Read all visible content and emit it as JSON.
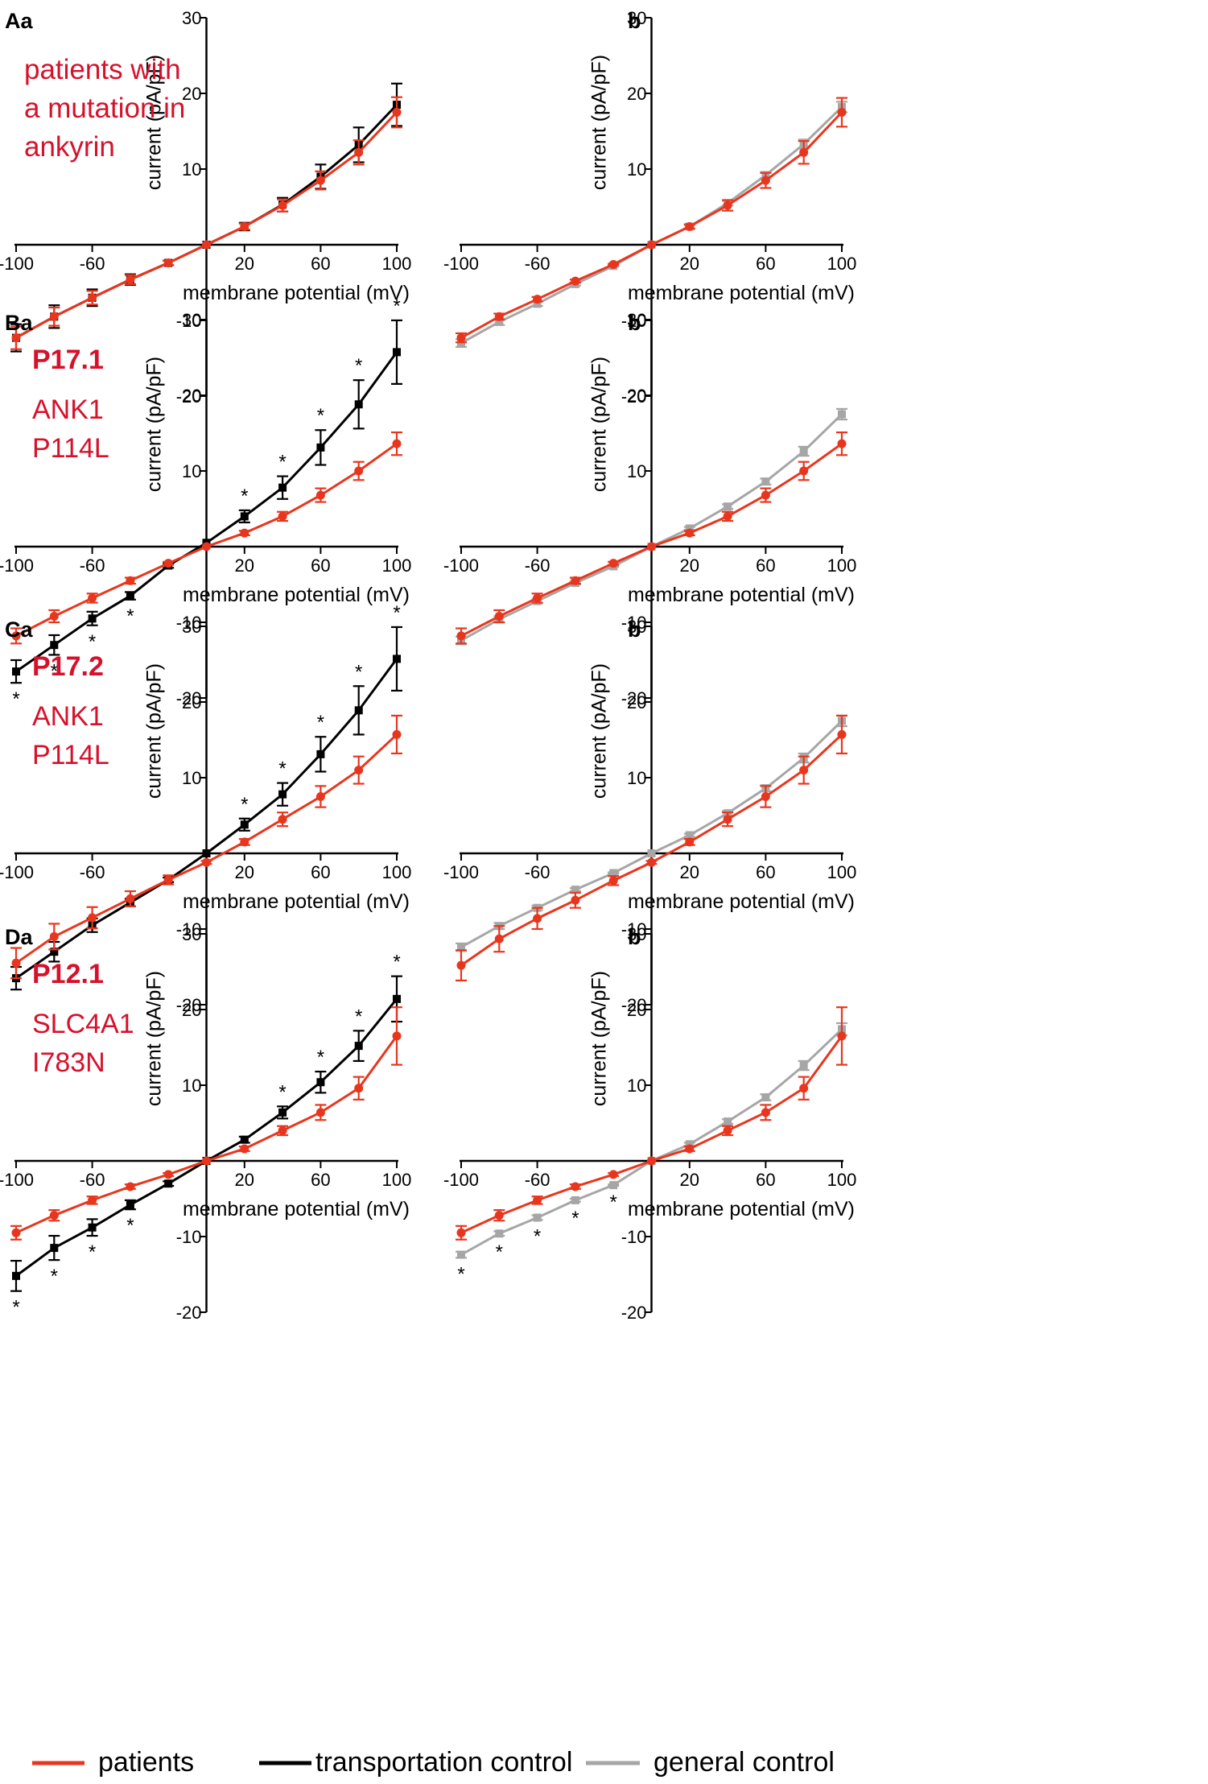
{
  "colors": {
    "patients": "#e8361e",
    "transport": "#000000",
    "general": "#a6a6a6",
    "annotation_red": "#d6112b"
  },
  "legend": [
    {
      "key": "patients",
      "label": "patients"
    },
    {
      "key": "transport",
      "label": "transportation control"
    },
    {
      "key": "general",
      "label": "general control"
    }
  ],
  "chart_data": [
    {
      "panel": "Aa",
      "type": "line",
      "title": "Aa",
      "annotation": [
        "patients with",
        "a mutation in",
        "ankyrin"
      ],
      "annotation_bold_first": false,
      "xlabel": "membrane potential (mV)",
      "ylabel": "current (pA/pF)",
      "xlim": [
        -100,
        100
      ],
      "ylim": [
        -20,
        30
      ],
      "x_ticks": [
        -100,
        -60,
        20,
        60,
        100
      ],
      "y_ticks": [
        30,
        20,
        10,
        -10,
        -20
      ],
      "x": [
        -100,
        -80,
        -60,
        -40,
        -20,
        0,
        20,
        40,
        60,
        80,
        100
      ],
      "series": [
        {
          "name": "transportation control",
          "key": "transport",
          "marker": "square",
          "values": [
            -12.3,
            -9.5,
            -7.0,
            -4.6,
            -2.4,
            0,
            2.4,
            5.3,
            9.0,
            13.2,
            18.5
          ],
          "errors": [
            1.8,
            1.5,
            1.1,
            0.7,
            0.3,
            0,
            0.5,
            0.9,
            1.6,
            2.3,
            2.8
          ],
          "significant": []
        },
        {
          "name": "patients",
          "key": "patients",
          "marker": "circle",
          "values": [
            -12.3,
            -9.5,
            -7.0,
            -4.6,
            -2.4,
            0,
            2.4,
            5.2,
            8.5,
            12.2,
            17.5
          ],
          "errors": [
            1.5,
            1.2,
            0.9,
            0.6,
            0.3,
            0,
            0.4,
            0.8,
            1.2,
            1.6,
            2.0
          ],
          "significant": []
        }
      ]
    },
    {
      "panel": "Ab",
      "type": "line",
      "title": "b",
      "annotation": [],
      "xlabel": "membrane potential (mV)",
      "ylabel": "current (pA/pF)",
      "xlim": [
        -100,
        100
      ],
      "ylim": [
        -20,
        30
      ],
      "x_ticks": [
        -100,
        -60,
        20,
        60,
        100
      ],
      "y_ticks": [
        30,
        20,
        10,
        -10,
        -20
      ],
      "x": [
        -100,
        -80,
        -60,
        -40,
        -20,
        0,
        20,
        40,
        60,
        80,
        100
      ],
      "series": [
        {
          "name": "general control",
          "key": "general",
          "marker": "square",
          "values": [
            -13.0,
            -10.2,
            -7.8,
            -5.2,
            -2.8,
            0,
            2.4,
            5.5,
            9.2,
            13.3,
            18.2
          ],
          "errors": [
            0.5,
            0.4,
            0.3,
            0.2,
            0.1,
            0,
            0.2,
            0.3,
            0.4,
            0.6,
            0.7
          ],
          "significant": []
        },
        {
          "name": "patients",
          "key": "patients",
          "marker": "circle",
          "values": [
            -12.3,
            -9.5,
            -7.2,
            -4.8,
            -2.6,
            0,
            2.4,
            5.2,
            8.5,
            12.2,
            17.5
          ],
          "errors": [
            0.6,
            0.4,
            0.3,
            0.2,
            0.1,
            0,
            0.3,
            0.7,
            1.0,
            1.5,
            1.9
          ],
          "significant": []
        }
      ]
    },
    {
      "panel": "Ba",
      "type": "line",
      "title": "Ba",
      "annotation": [
        "P17.1",
        "ANK1",
        "P114L"
      ],
      "annotation_bold_first": true,
      "xlabel": "membrane potential (mV)",
      "ylabel": "current (pA/pF)",
      "xlim": [
        -100,
        100
      ],
      "ylim": [
        -20,
        30
      ],
      "x_ticks": [
        -100,
        -60,
        20,
        60,
        100
      ],
      "y_ticks": [
        30,
        20,
        10,
        -10,
        -20
      ],
      "x": [
        -100,
        -80,
        -60,
        -40,
        -20,
        0,
        20,
        40,
        60,
        80,
        100
      ],
      "series": [
        {
          "name": "transportation control",
          "key": "transport",
          "marker": "square",
          "values": [
            -16.5,
            -13.0,
            -9.5,
            -6.5,
            -2.5,
            0.5,
            4.0,
            7.8,
            13.1,
            18.8,
            25.7
          ],
          "errors": [
            1.5,
            1.3,
            0.9,
            0.5,
            0.3,
            0,
            0.8,
            1.5,
            2.3,
            3.2,
            4.2
          ],
          "significant": [
            -100,
            -80,
            -60,
            -40,
            20,
            40,
            60,
            80,
            100
          ],
          "star_label": "*"
        },
        {
          "name": "patients",
          "key": "patients",
          "marker": "circle",
          "values": [
            -11.8,
            -9.2,
            -6.8,
            -4.5,
            -2.2,
            0,
            1.8,
            4.0,
            6.8,
            10.0,
            13.6
          ],
          "errors": [
            1.0,
            0.8,
            0.6,
            0.4,
            0.2,
            0,
            0.3,
            0.6,
            0.9,
            1.2,
            1.5
          ],
          "significant": []
        }
      ]
    },
    {
      "panel": "Bb",
      "type": "line",
      "title": "b",
      "annotation": [],
      "xlabel": "membrane potential (mV)",
      "ylabel": "current (pA/pF)",
      "xlim": [
        -100,
        100
      ],
      "ylim": [
        -20,
        30
      ],
      "x_ticks": [
        -100,
        -60,
        20,
        60,
        100
      ],
      "y_ticks": [
        30,
        20,
        10,
        -10,
        -20
      ],
      "x": [
        -100,
        -80,
        -60,
        -40,
        -20,
        0,
        20,
        40,
        60,
        80,
        100
      ],
      "series": [
        {
          "name": "general control",
          "key": "general",
          "marker": "square",
          "values": [
            -12.4,
            -9.6,
            -7.2,
            -4.8,
            -2.6,
            0,
            2.4,
            5.3,
            8.6,
            12.6,
            17.5
          ],
          "errors": [
            0.5,
            0.4,
            0.3,
            0.2,
            0.1,
            0,
            0.2,
            0.3,
            0.4,
            0.6,
            0.7
          ],
          "significant": []
        },
        {
          "name": "patients",
          "key": "patients",
          "marker": "circle",
          "values": [
            -11.8,
            -9.2,
            -6.8,
            -4.5,
            -2.2,
            0,
            1.8,
            4.0,
            6.8,
            10.0,
            13.6
          ],
          "errors": [
            1.0,
            0.8,
            0.6,
            0.4,
            0.2,
            0,
            0.3,
            0.6,
            0.9,
            1.2,
            1.5
          ],
          "significant": []
        }
      ]
    },
    {
      "panel": "Ca",
      "type": "line",
      "title": "Ca",
      "annotation": [
        "P17.2",
        "ANK1",
        "P114L"
      ],
      "annotation_bold_first": true,
      "xlabel": "membrane potential (mV)",
      "ylabel": "current (pA/pF)",
      "xlim": [
        -100,
        100
      ],
      "ylim": [
        -20,
        30
      ],
      "x_ticks": [
        -100,
        -60,
        20,
        60,
        100
      ],
      "y_ticks": [
        30,
        20,
        10,
        -10,
        -20
      ],
      "x": [
        -100,
        -80,
        -60,
        -40,
        -20,
        0,
        20,
        40,
        60,
        80,
        100
      ],
      "series": [
        {
          "name": "transportation control",
          "key": "transport",
          "marker": "square",
          "values": [
            -16.5,
            -13.0,
            -9.5,
            -6.5,
            -3.5,
            0,
            3.8,
            7.8,
            13.1,
            18.9,
            25.7
          ],
          "errors": [
            1.5,
            1.3,
            0.9,
            0.5,
            0.3,
            0,
            0.8,
            1.5,
            2.3,
            3.2,
            4.2
          ],
          "significant": [
            20,
            40,
            60,
            80,
            100
          ],
          "star_label": "*"
        },
        {
          "name": "patients",
          "key": "patients",
          "marker": "circle",
          "values": [
            -14.5,
            -11.0,
            -8.5,
            -6.0,
            -3.5,
            -1.2,
            1.5,
            4.5,
            7.5,
            11.0,
            15.7
          ],
          "errors": [
            2.0,
            1.7,
            1.4,
            1.0,
            0.6,
            0.2,
            0.4,
            0.9,
            1.4,
            1.8,
            2.5
          ],
          "significant": []
        }
      ]
    },
    {
      "panel": "Cb",
      "type": "line",
      "title": "b",
      "annotation": [],
      "xlabel": "membrane potential (mV)",
      "ylabel": "current (pA/pF)",
      "xlim": [
        -100,
        100
      ],
      "ylim": [
        -20,
        30
      ],
      "x_ticks": [
        -100,
        -60,
        20,
        60,
        100
      ],
      "y_ticks": [
        30,
        20,
        10,
        -10,
        -20
      ],
      "x": [
        -100,
        -80,
        -60,
        -40,
        -20,
        0,
        20,
        40,
        60,
        80,
        100
      ],
      "series": [
        {
          "name": "general control",
          "key": "general",
          "marker": "square",
          "values": [
            -12.4,
            -9.6,
            -7.2,
            -4.8,
            -2.6,
            0,
            2.4,
            5.3,
            8.6,
            12.6,
            17.5
          ],
          "errors": [
            0.5,
            0.4,
            0.3,
            0.2,
            0.1,
            0,
            0.2,
            0.3,
            0.4,
            0.6,
            0.7
          ],
          "significant": []
        },
        {
          "name": "patients",
          "key": "patients",
          "marker": "circle",
          "values": [
            -14.8,
            -11.3,
            -8.6,
            -6.2,
            -3.6,
            -1.2,
            1.5,
            4.5,
            7.5,
            11.0,
            15.7
          ],
          "errors": [
            2.0,
            1.7,
            1.4,
            1.0,
            0.6,
            0.2,
            0.4,
            0.9,
            1.4,
            1.8,
            2.5
          ],
          "significant": []
        }
      ]
    },
    {
      "panel": "Da",
      "type": "line",
      "title": "Da",
      "annotation": [
        "P12.1",
        "SLC4A1",
        "I783N"
      ],
      "annotation_bold_first": true,
      "xlabel": "membrane potential (mV)",
      "ylabel": "current (pA/pF)",
      "xlim": [
        -100,
        100
      ],
      "ylim": [
        -20,
        30
      ],
      "x_ticks": [
        -100,
        -60,
        20,
        60,
        100
      ],
      "y_ticks": [
        30,
        20,
        10,
        -10,
        -20
      ],
      "x": [
        -100,
        -80,
        -60,
        -40,
        -20,
        0,
        20,
        40,
        60,
        80,
        100
      ],
      "series": [
        {
          "name": "transportation control",
          "key": "transport",
          "marker": "square",
          "values": [
            -15.2,
            -11.5,
            -8.8,
            -5.8,
            -3.0,
            0,
            2.8,
            6.4,
            10.4,
            15.2,
            21.4
          ],
          "errors": [
            2.0,
            1.6,
            1.1,
            0.6,
            0.3,
            0,
            0.4,
            0.8,
            1.4,
            2.0,
            3.0
          ],
          "significant": [
            -100,
            -80,
            -60,
            -40,
            40,
            60,
            80,
            100
          ],
          "star_label": "*"
        },
        {
          "name": "patients",
          "key": "patients",
          "marker": "circle",
          "values": [
            -9.5,
            -7.2,
            -5.2,
            -3.4,
            -1.8,
            0,
            1.6,
            4.0,
            6.4,
            9.6,
            16.5
          ],
          "errors": [
            0.9,
            0.7,
            0.5,
            0.3,
            0.2,
            0,
            0.3,
            0.6,
            1.0,
            1.5,
            3.8
          ],
          "significant": []
        }
      ]
    },
    {
      "panel": "Db",
      "type": "line",
      "title": "b",
      "annotation": [],
      "xlabel": "membrane potential (mV)",
      "ylabel": "current (pA/pF)",
      "xlim": [
        -100,
        100
      ],
      "ylim": [
        -20,
        30
      ],
      "x_ticks": [
        -100,
        -60,
        20,
        60,
        100
      ],
      "y_ticks": [
        30,
        20,
        10,
        -10,
        -20
      ],
      "x": [
        -100,
        -80,
        -60,
        -40,
        -20,
        0,
        20,
        40,
        60,
        80,
        100
      ],
      "series": [
        {
          "name": "general control",
          "key": "general",
          "marker": "square",
          "values": [
            -12.4,
            -9.6,
            -7.5,
            -5.2,
            -3.2,
            0,
            2.2,
            5.2,
            8.4,
            12.6,
            17.4
          ],
          "errors": [
            0.4,
            0.3,
            0.3,
            0.2,
            0.1,
            0,
            0.2,
            0.3,
            0.4,
            0.6,
            0.8
          ],
          "significant": [
            -100,
            -80,
            -60,
            -40,
            -20
          ],
          "star_label": "*"
        },
        {
          "name": "patients",
          "key": "patients",
          "marker": "circle",
          "values": [
            -9.5,
            -7.2,
            -5.2,
            -3.4,
            -1.8,
            0,
            1.6,
            4.0,
            6.4,
            9.6,
            16.5
          ],
          "errors": [
            0.9,
            0.7,
            0.5,
            0.3,
            0.2,
            0,
            0.3,
            0.6,
            1.0,
            1.5,
            3.8
          ],
          "significant": []
        }
      ]
    }
  ]
}
